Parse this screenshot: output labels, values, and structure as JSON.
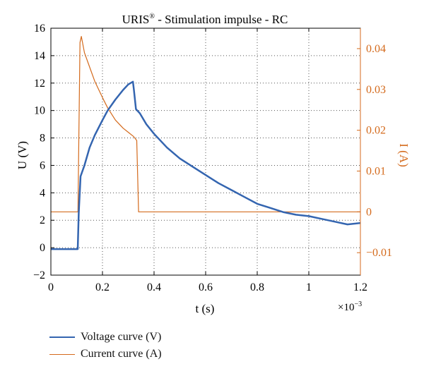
{
  "colors": {
    "voltage": "#3465b0",
    "current": "#d46a1c",
    "axis": "#000000",
    "grid": "#555555"
  },
  "chart_data": {
    "type": "line",
    "title": "URIS",
    "title_superscript": "®",
    "title_rest": " - Stimulation impulse - RC",
    "xlabel": "t (s)",
    "x_exponent_label": "×10",
    "x_exponent_power": "−3",
    "ylabel_left": "U (V)",
    "ylabel_right": "I (A)",
    "xlim": [
      0,
      1.2
    ],
    "ylim_left": [
      -2,
      16
    ],
    "ylim_right": [
      -0.0155,
      0.045
    ],
    "x_ticks": [
      0,
      0.2,
      0.4,
      0.6,
      0.8,
      1,
      1.2
    ],
    "x_tick_labels": [
      "0",
      "0.2",
      "0.4",
      "0.6",
      "0.8",
      "1",
      "1.2"
    ],
    "y_left_ticks": [
      -2,
      0,
      2,
      4,
      6,
      8,
      10,
      12,
      14,
      16
    ],
    "y_left_tick_labels": [
      "−2",
      "0",
      "2",
      "4",
      "6",
      "8",
      "10",
      "12",
      "14",
      "16"
    ],
    "y_right_ticks": [
      -0.01,
      0,
      0.01,
      0.02,
      0.03,
      0.04
    ],
    "y_right_tick_labels": [
      "−0.01",
      "0",
      "0.01",
      "0.02",
      "0.03",
      "0.04"
    ],
    "grid": true,
    "legend_position": "bottom-left (below plot)",
    "series": [
      {
        "name": "Voltage curve (V)",
        "axis": "left",
        "x": [
          0,
          0.05,
          0.104,
          0.108,
          0.115,
          0.13,
          0.15,
          0.17,
          0.2,
          0.22,
          0.25,
          0.28,
          0.3,
          0.318,
          0.322,
          0.33,
          0.345,
          0.37,
          0.4,
          0.45,
          0.5,
          0.55,
          0.6,
          0.65,
          0.7,
          0.75,
          0.8,
          0.85,
          0.9,
          0.95,
          1.0,
          1.05,
          1.1,
          1.15,
          1.2
        ],
        "values": [
          -0.1,
          -0.1,
          -0.1,
          2.5,
          5.2,
          6.0,
          7.3,
          8.2,
          9.3,
          10.0,
          10.8,
          11.5,
          11.9,
          12.1,
          11.5,
          10.1,
          9.8,
          9.0,
          8.3,
          7.3,
          6.5,
          5.9,
          5.3,
          4.7,
          4.2,
          3.7,
          3.2,
          2.9,
          2.6,
          2.4,
          2.3,
          2.1,
          1.9,
          1.7,
          1.8
        ]
      },
      {
        "name": "Current curve (A)",
        "axis": "right",
        "x": [
          0,
          0.05,
          0.105,
          0.113,
          0.118,
          0.13,
          0.15,
          0.17,
          0.2,
          0.22,
          0.25,
          0.28,
          0.3,
          0.32,
          0.333,
          0.34,
          0.4,
          0.6,
          0.8,
          1.0,
          1.2
        ],
        "values": [
          0,
          0,
          0,
          0.0415,
          0.043,
          0.039,
          0.0355,
          0.032,
          0.028,
          0.0255,
          0.0225,
          0.0205,
          0.0195,
          0.0185,
          0.0175,
          0,
          0,
          0,
          0,
          0,
          0
        ]
      }
    ]
  }
}
